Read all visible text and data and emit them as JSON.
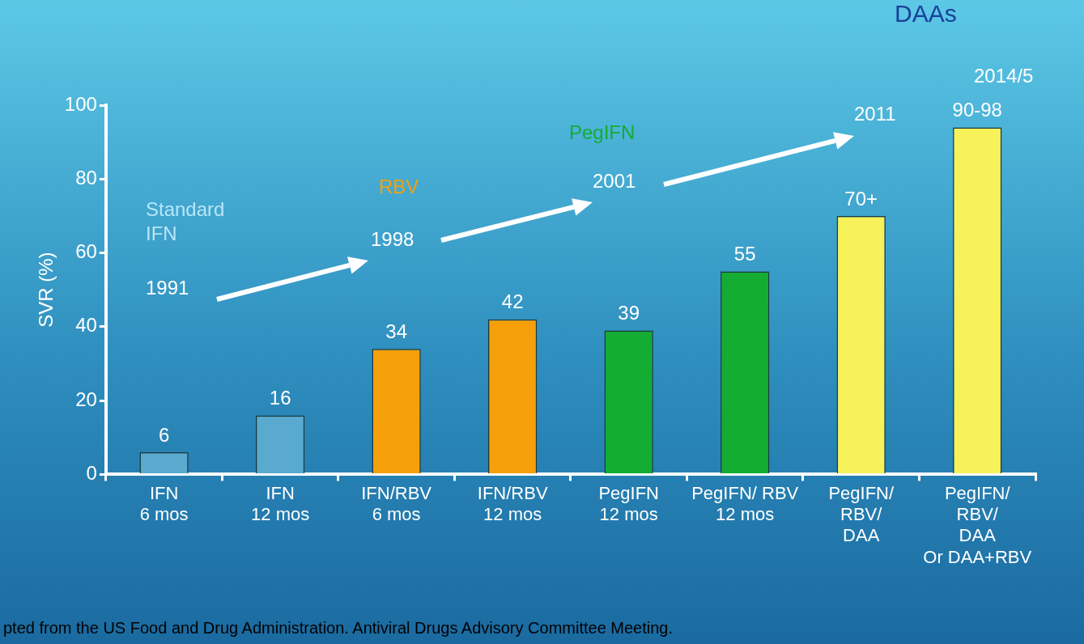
{
  "chart_data": {
    "type": "bar",
    "ylabel": "SVR (%)",
    "categories": [
      "IFN\n6 mos",
      "IFN\n12 mos",
      "IFN/RBV\n6 mos",
      "IFN/RBV\n12 mos",
      "PegIFN\n12 mos",
      "PegIFN/ RBV\n12 mos",
      "PegIFN/\nRBV/\nDAA",
      "PegIFN/\nRBV/\nDAA\nOr DAA+RBV"
    ],
    "values": [
      6,
      16,
      34,
      42,
      39,
      55,
      70,
      94
    ],
    "colors": [
      "#5aaad0",
      "#5aaad0",
      "#f5a00a",
      "#f5a00a",
      "#14ac32",
      "#14ac32",
      "#f7f25a",
      "#f7f25a"
    ],
    "value_labels": [
      "6",
      "16",
      "34",
      "42",
      "39",
      "55",
      "70+",
      "90-98"
    ],
    "ylim": [
      0,
      100
    ],
    "yticks": [
      0,
      20,
      40,
      60,
      80,
      100
    ],
    "grid": false,
    "legend": false,
    "annotations": [
      "Standard\nIFN",
      "1991",
      "RBV",
      "1998",
      "PegIFN",
      "2001",
      "2011",
      "DAAs",
      "2014/5",
      "pted from the US Food and Drug Administration. Antiviral Drugs Advisory Committee Meeting."
    ]
  }
}
